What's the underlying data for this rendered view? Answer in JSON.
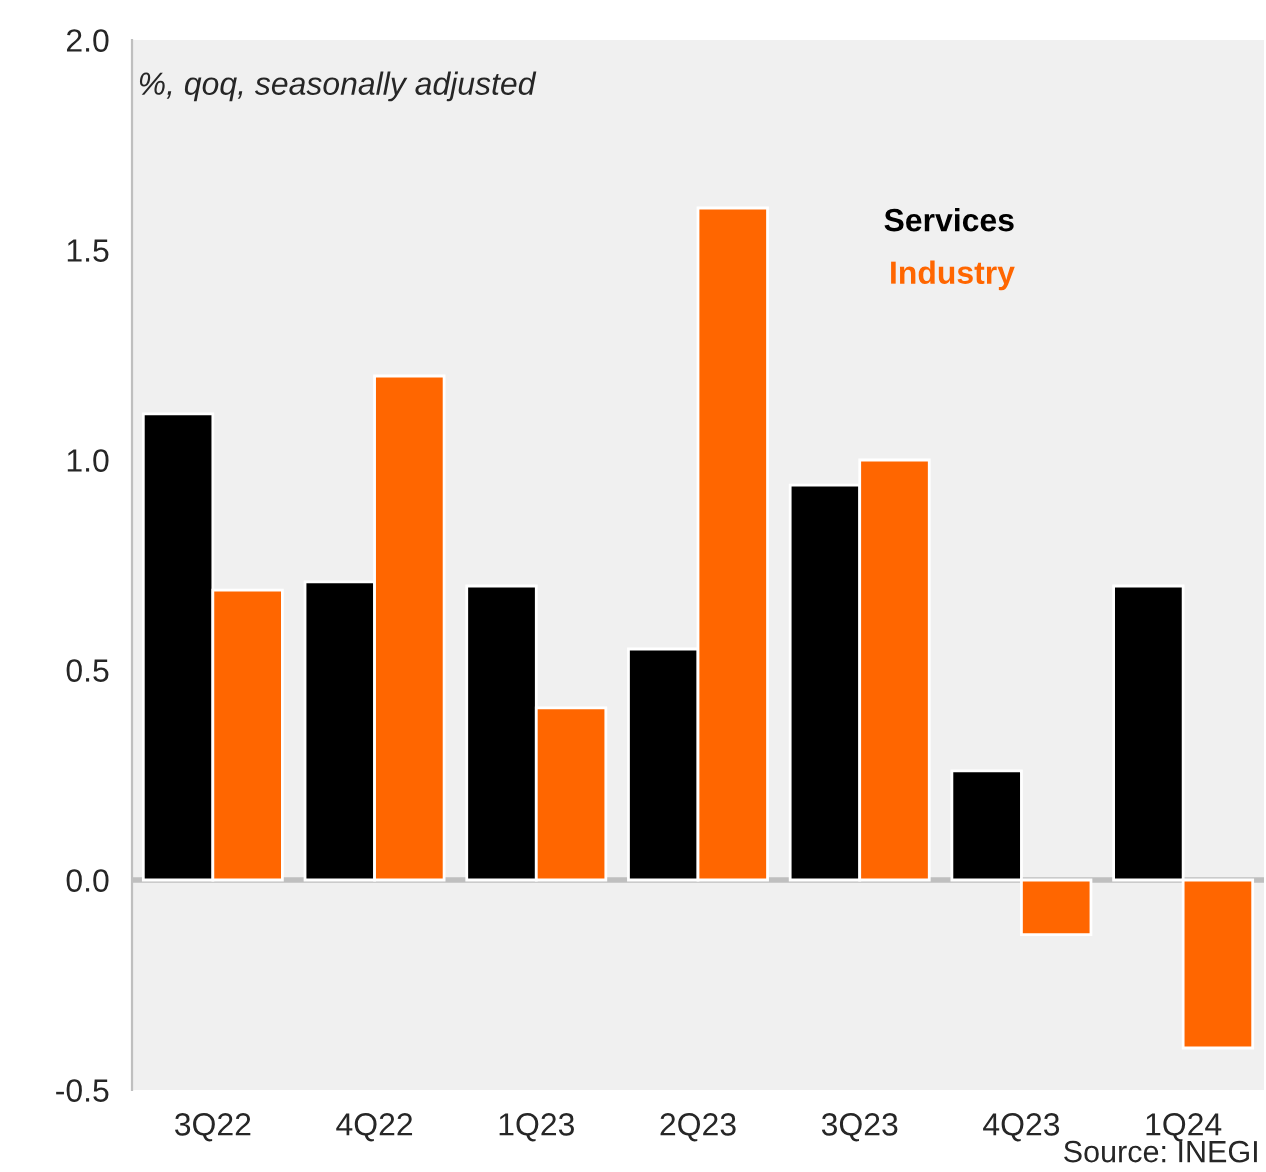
{
  "chart_data": {
    "type": "bar",
    "subtitle": "%, qoq, seasonally adjusted",
    "categories": [
      "3Q22",
      "4Q22",
      "1Q23",
      "2Q23",
      "3Q23",
      "4Q23",
      "1Q24"
    ],
    "series": [
      {
        "name": "Services",
        "color": "#000000",
        "values": [
          1.11,
          0.71,
          0.7,
          0.55,
          0.94,
          0.26,
          0.7
        ]
      },
      {
        "name": "Industry",
        "color": "#ff6600",
        "values": [
          0.69,
          1.2,
          0.41,
          1.6,
          1.0,
          -0.13,
          -0.4
        ]
      }
    ],
    "ylim": [
      -0.5,
      2.0
    ],
    "yticks": [
      {
        "value": -0.5,
        "label": "-0.5"
      },
      {
        "value": 0,
        "label": "0.0"
      },
      {
        "value": 0.5,
        "label": "0.5"
      },
      {
        "value": 1,
        "label": "1.0"
      },
      {
        "value": 1.5,
        "label": "1.5"
      },
      {
        "value": 2,
        "label": "2.0"
      }
    ],
    "ref_lines": [
      {
        "axis": "y",
        "value": 0,
        "color": "#bfbfbf"
      }
    ],
    "legend": "top right",
    "annotations": [
      "Source: INEGI"
    ]
  }
}
